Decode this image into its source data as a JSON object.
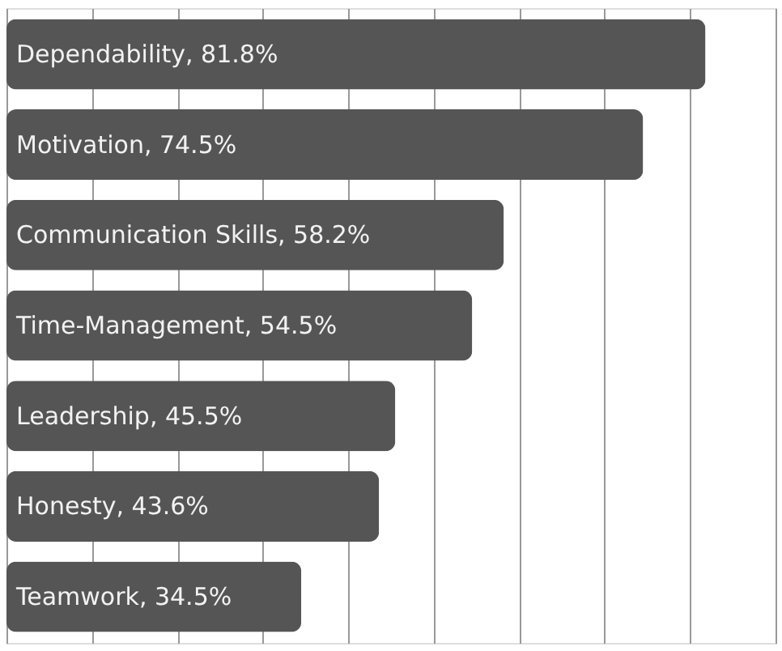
{
  "chart_data": {
    "type": "bar",
    "orientation": "horizontal",
    "categories": [
      "Dependability",
      "Motivation",
      "Communication Skills",
      "Time-Management",
      "Leadership",
      "Honesty",
      "Teamwork"
    ],
    "values": [
      81.8,
      74.5,
      58.2,
      54.5,
      45.5,
      43.6,
      34.5
    ],
    "value_labels": [
      ", 81.8%",
      ", 74.5%",
      ", 58.2%",
      ", 54.5%",
      ", 45.5%",
      ", 43.6%",
      ", 34.5%"
    ],
    "color": "#555555",
    "xlim": [
      0,
      90
    ],
    "xticks": [
      {
        "value": 0,
        "label": null
      },
      {
        "value": 10,
        "label": null
      },
      {
        "value": 20,
        "label": null
      },
      {
        "value": 30,
        "label": null
      },
      {
        "value": 40,
        "label": null
      },
      {
        "value": 50,
        "label": null
      },
      {
        "value": 60,
        "label": null
      },
      {
        "value": 70,
        "label": null
      },
      {
        "value": 80,
        "label": null
      },
      {
        "value": 90,
        "label": null
      }
    ],
    "grid": "x",
    "tick_labels": false
  }
}
